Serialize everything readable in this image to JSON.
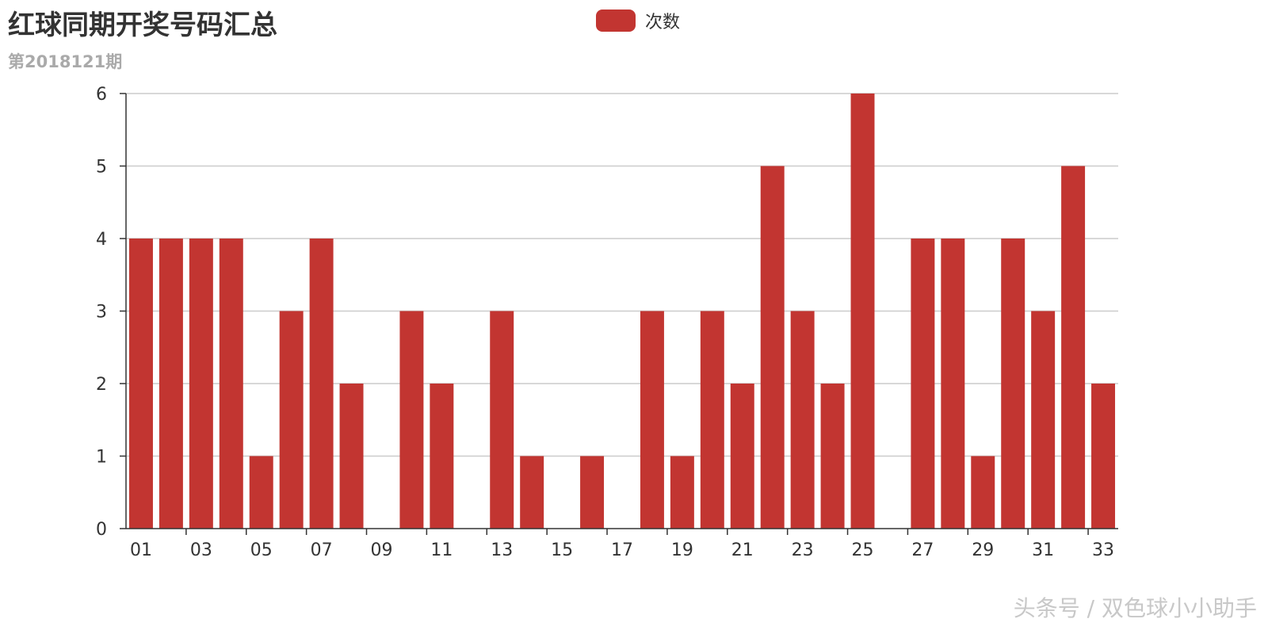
{
  "header": {
    "title": "红球同期开奖号码汇总",
    "subtitle": "第2018121期"
  },
  "legend": {
    "label": "次数",
    "color": "#c23531"
  },
  "watermark": "头条号 / 双色球小小助手",
  "chart_data": {
    "type": "bar",
    "title": "红球同期开奖号码汇总",
    "subtitle": "第2018121期",
    "categories": [
      "01",
      "02",
      "03",
      "04",
      "05",
      "06",
      "07",
      "08",
      "09",
      "10",
      "11",
      "12",
      "13",
      "14",
      "15",
      "16",
      "17",
      "18",
      "19",
      "20",
      "21",
      "22",
      "23",
      "24",
      "25",
      "26",
      "27",
      "28",
      "29",
      "30",
      "31",
      "32",
      "33"
    ],
    "x_tick_labels_shown": [
      "01",
      "03",
      "05",
      "07",
      "09",
      "11",
      "13",
      "15",
      "17",
      "19",
      "21",
      "23",
      "25",
      "27",
      "29",
      "31",
      "33"
    ],
    "series": [
      {
        "name": "次数",
        "color": "#c23531",
        "values": [
          4,
          4,
          4,
          4,
          1,
          3,
          4,
          2,
          0,
          3,
          2,
          0,
          3,
          1,
          0,
          1,
          0,
          3,
          1,
          3,
          2,
          5,
          3,
          2,
          6,
          0,
          4,
          4,
          1,
          4,
          3,
          5,
          2
        ]
      }
    ],
    "ylim": [
      0,
      6
    ],
    "yticks": [
      0,
      1,
      2,
      3,
      4,
      5,
      6
    ],
    "grid": true,
    "legend_position": "top-center"
  }
}
